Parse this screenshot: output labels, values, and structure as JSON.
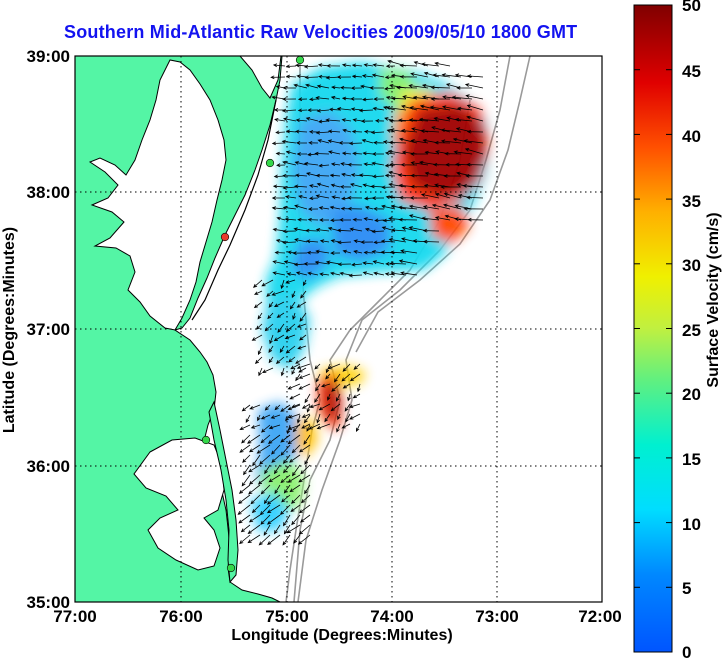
{
  "title": "Southern Mid-Atlantic Raw Velocities 2009/05/10 1800 GMT",
  "x_axis": {
    "label": "Longitude (Degrees:Minutes)",
    "ticks": [
      "77:00",
      "76:00",
      "75:00",
      "74:00",
      "73:00",
      "72:00"
    ]
  },
  "y_axis": {
    "label": "Latitude (Degrees:Minutes)",
    "ticks": [
      "39:00",
      "38:00",
      "37:00",
      "36:00",
      "35:00"
    ]
  },
  "colorbar": {
    "label": "Surface Velocity (cm/s)",
    "ticks": [
      "50",
      "45",
      "40",
      "35",
      "30",
      "25",
      "20",
      "15",
      "10",
      "5",
      "0"
    ],
    "min": 0,
    "max": 50,
    "colormap": "jet"
  },
  "colors": {
    "land": "#54f5a5",
    "coast": "#000000",
    "bathymetry": "#9a9a9a",
    "title": "#1313f0",
    "station": "#34d84a",
    "station_highlight": "#e83a2a"
  },
  "map_extent": {
    "lon": [
      -77,
      -72
    ],
    "lat": [
      35,
      39
    ]
  },
  "grid": "dotted"
}
